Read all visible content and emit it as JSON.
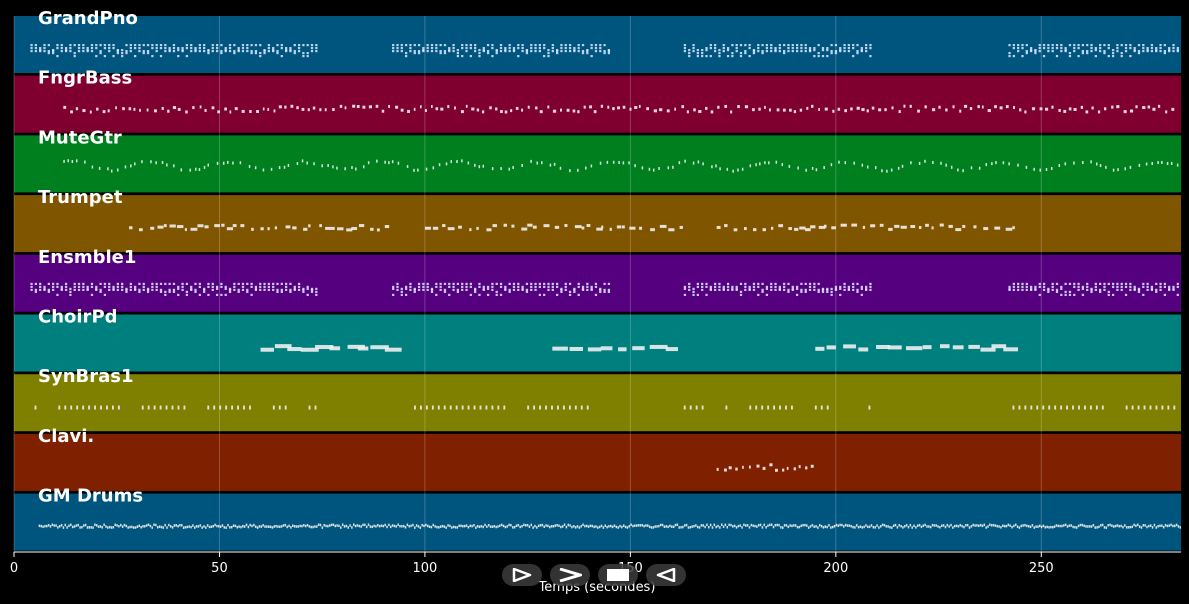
{
  "chart_data": {
    "type": "piano-roll",
    "xlabel": "Temps (secondes)",
    "xlim": [
      0,
      284
    ],
    "x_ticks": [
      0,
      50,
      100,
      150,
      200,
      250
    ],
    "grid": true,
    "tracks": [
      {
        "name": "GrandPno",
        "color": "#00557f",
        "active": [
          [
            4,
            74
          ],
          [
            92,
            145
          ],
          [
            163,
            209
          ],
          [
            242,
            283
          ]
        ],
        "pattern": "dense-chords"
      },
      {
        "name": "FngrBass",
        "color": "#7f002f",
        "active": [
          [
            12,
            283
          ]
        ],
        "pattern": "sparse"
      },
      {
        "name": "MuteGtr",
        "color": "#007f1f",
        "active": [
          [
            12,
            284
          ]
        ],
        "pattern": "sparse-wavy"
      },
      {
        "name": "Trumpet",
        "color": "#7f5500",
        "active": [
          [
            28,
            91
          ],
          [
            100,
            163
          ],
          [
            171,
            243
          ]
        ],
        "pattern": "phrases"
      },
      {
        "name": "Ensmble1",
        "color": "#55007f",
        "active": [
          [
            4,
            74
          ],
          [
            92,
            145
          ],
          [
            163,
            209
          ],
          [
            242,
            283
          ]
        ],
        "pattern": "dense-chords"
      },
      {
        "name": "ChoirPd",
        "color": "#007f7f",
        "active": [
          [
            60,
            91
          ],
          [
            131,
            162
          ],
          [
            195,
            242
          ]
        ],
        "pattern": "blocks"
      },
      {
        "name": "SynBras1",
        "color": "#7f7f00",
        "active": [
          [
            5,
            74
          ],
          [
            93,
            145
          ],
          [
            163,
            209
          ],
          [
            243,
            283
          ]
        ],
        "pattern": "short-stabs"
      },
      {
        "name": "Clavi.",
        "color": "#7f2000",
        "active": [
          [
            171,
            195
          ]
        ],
        "pattern": "sparse"
      },
      {
        "name": "GM Drums",
        "color": "#00557f",
        "active": [
          [
            6,
            284
          ]
        ],
        "pattern": "drums"
      }
    ]
  },
  "controls": {
    "play_icon": "play-outline-icon",
    "forward_icon": "chevron-right-icon",
    "stop_icon": "stop-icon",
    "rewind_icon": "rewind-icon"
  },
  "colors": {
    "background": "#000000",
    "note": "#f0f0f0",
    "grid": "#ffffff"
  }
}
